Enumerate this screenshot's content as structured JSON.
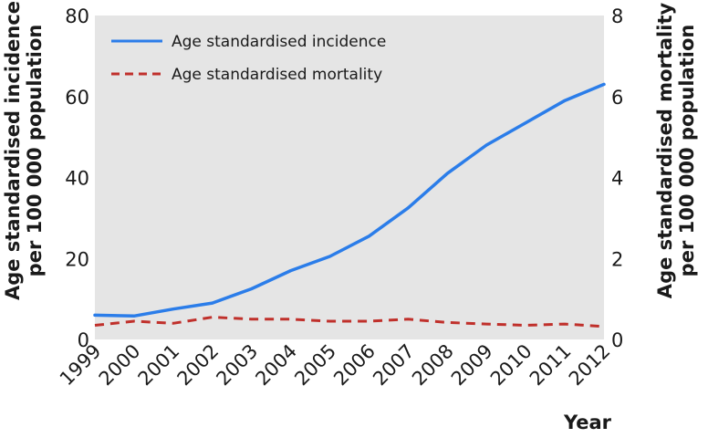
{
  "chart_data": {
    "type": "line",
    "title": "",
    "xlabel": "Year",
    "ylabel_left": "Age standardised incidence per 100 000 population",
    "ylabel_left_lines": [
      "Age standardised incidence",
      "per 100 000 population"
    ],
    "ylabel_right": "Age standardised mortality per 100 000 population",
    "ylabel_right_lines": [
      "Age standardised mortality",
      "per 100 000 population"
    ],
    "categories": [
      "1999",
      "2000",
      "2001",
      "2002",
      "2003",
      "2004",
      "2005",
      "2006",
      "2007",
      "2008",
      "2009",
      "2010",
      "2011",
      "2012"
    ],
    "ylim_left": [
      0,
      80
    ],
    "ylim_right": [
      0,
      8
    ],
    "yticks_left": [
      "0",
      "20",
      "40",
      "60",
      "80"
    ],
    "yticks_right": [
      "0",
      "2",
      "4",
      "6",
      "8"
    ],
    "grid": false,
    "legend_position": "top-left",
    "series": [
      {
        "name": "Age standardised incidence",
        "axis": "left",
        "style": "solid",
        "color": "#2b7de9",
        "values": [
          6.0,
          5.8,
          7.5,
          9.0,
          12.5,
          17.0,
          20.5,
          25.5,
          32.5,
          41.0,
          48.0,
          53.5,
          59.0,
          63.0
        ]
      },
      {
        "name": "Age standardised mortality",
        "axis": "right",
        "style": "dashed",
        "color": "#c0302b",
        "values": [
          0.35,
          0.45,
          0.4,
          0.55,
          0.5,
          0.5,
          0.45,
          0.45,
          0.5,
          0.42,
          0.38,
          0.35,
          0.38,
          0.32
        ]
      }
    ]
  }
}
